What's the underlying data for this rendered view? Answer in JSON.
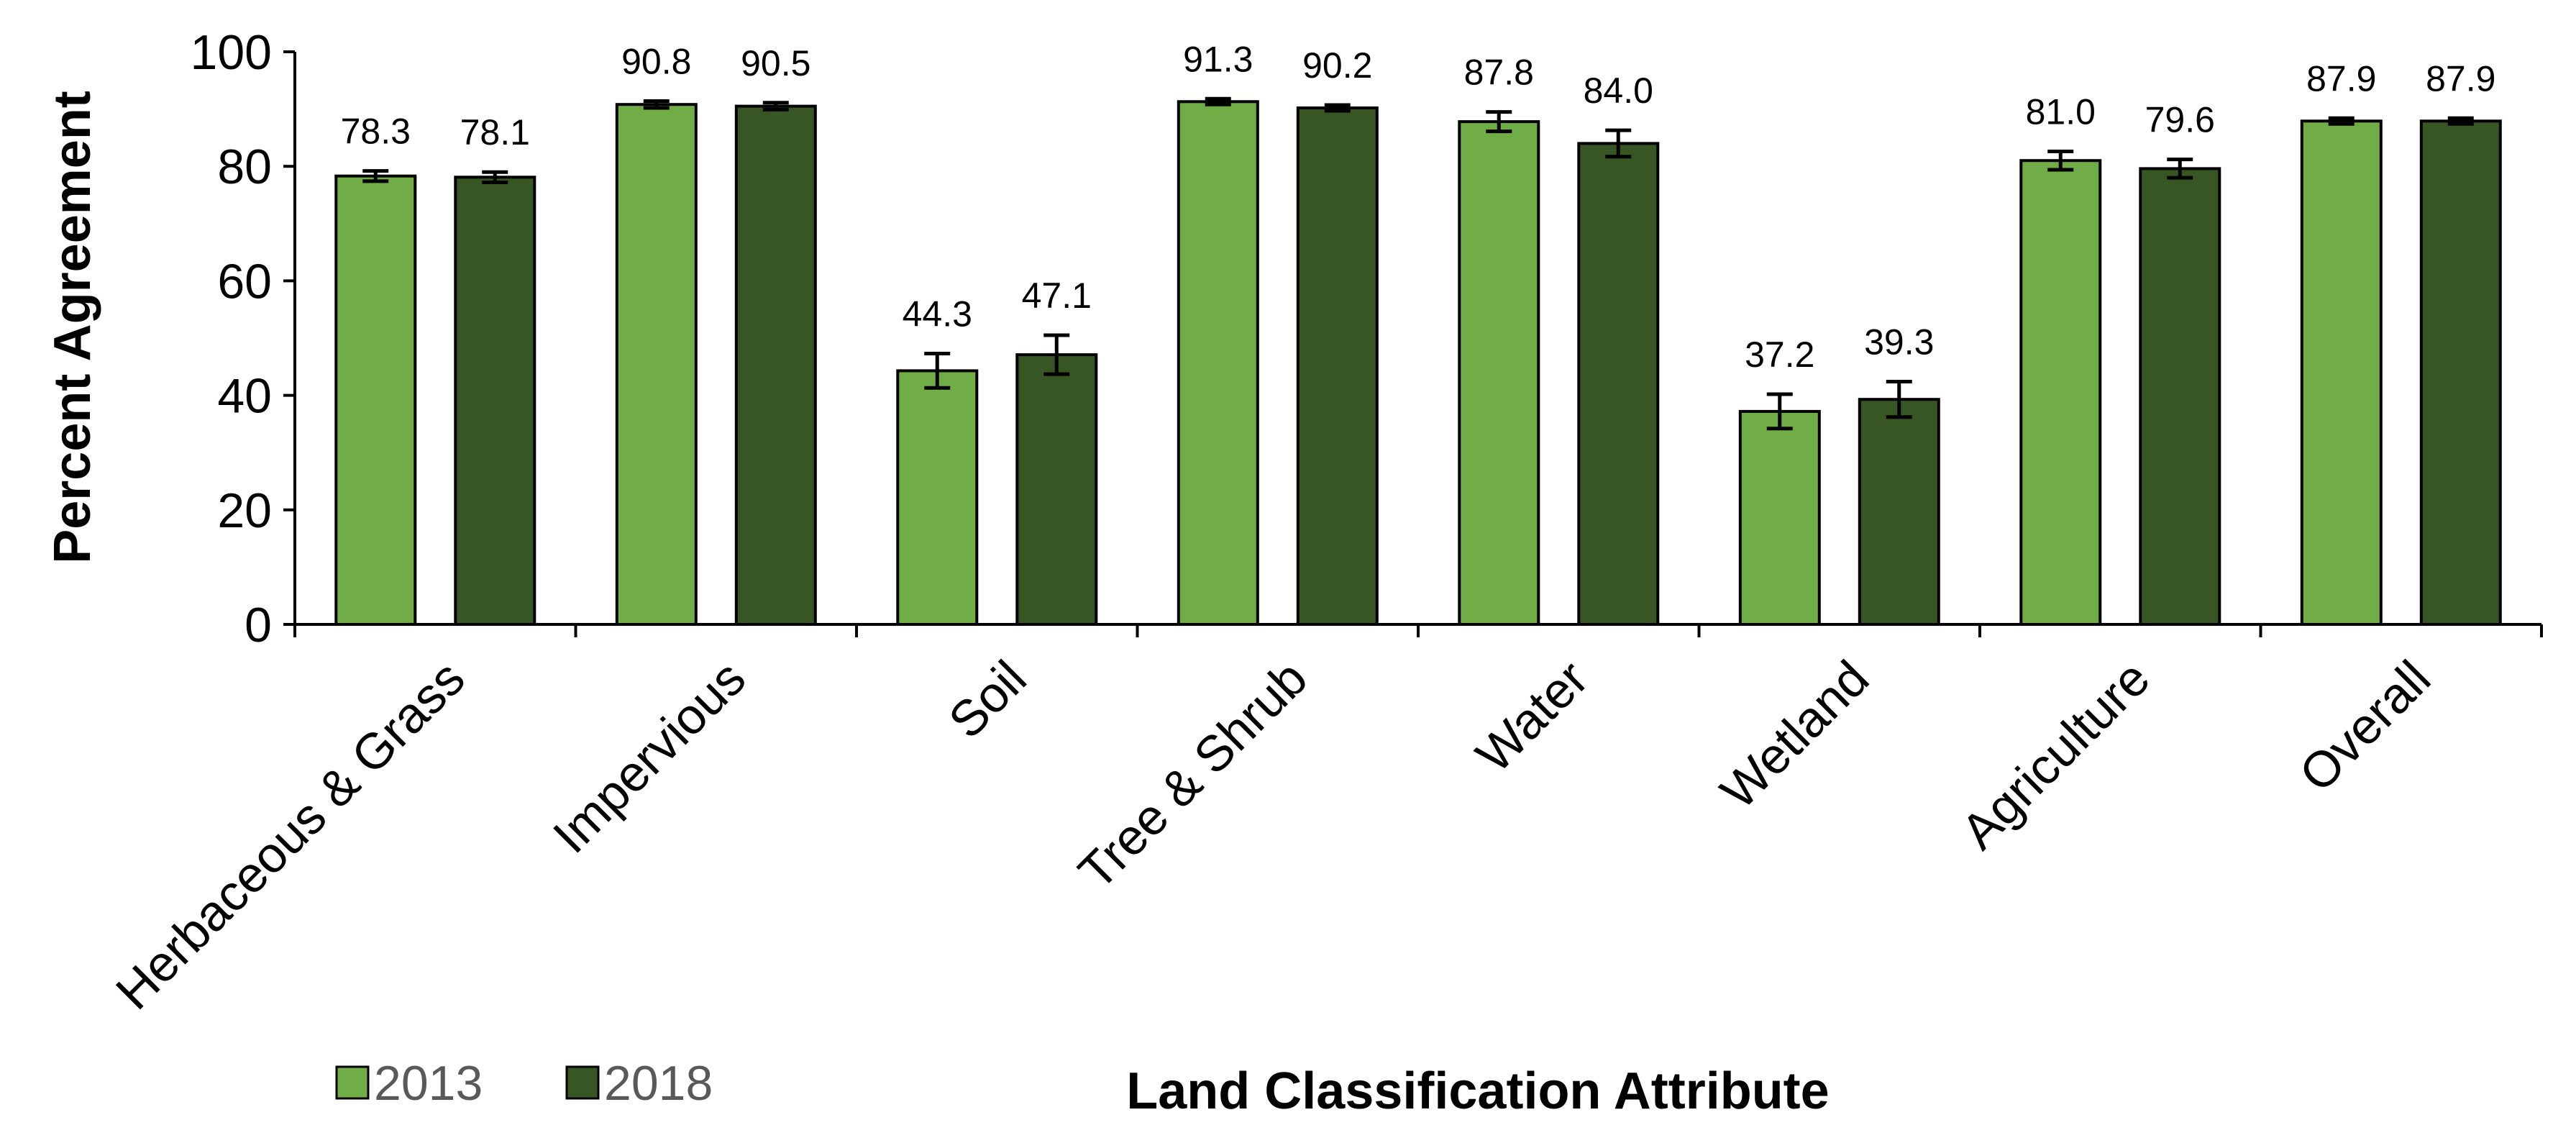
{
  "chart_data": {
    "type": "bar",
    "title": "",
    "xlabel": "Land Classification Attribute",
    "ylabel": "Percent Agreement",
    "ylim": [
      0,
      100
    ],
    "yticks": [
      0,
      20,
      40,
      60,
      80,
      100
    ],
    "ytick_labels": [
      "0",
      "20",
      "40",
      "60",
      "80",
      "100"
    ],
    "grid": false,
    "legend_position": "bottom-left",
    "categories": [
      "Herbaceous & Grass",
      "Impervious",
      "Soil",
      "Tree & Shrub",
      "Water",
      "Wetland",
      "Agriculture",
      "Overall"
    ],
    "series": [
      {
        "name": "2013",
        "color": "#70ad47",
        "values": [
          78.3,
          90.8,
          44.3,
          91.3,
          87.8,
          37.2,
          81.0,
          87.9
        ],
        "value_labels": [
          "78.3",
          "90.8",
          "44.3",
          "91.3",
          "87.8",
          "37.2",
          "81.0",
          "87.9"
        ],
        "error": [
          0.9,
          0.6,
          3.0,
          0.5,
          1.7,
          3.0,
          1.6,
          0.5
        ]
      },
      {
        "name": "2018",
        "color": "#375623",
        "values": [
          78.1,
          90.5,
          47.1,
          90.2,
          84.0,
          39.3,
          79.6,
          87.9
        ],
        "value_labels": [
          "78.1",
          "90.5",
          "47.1",
          "90.2",
          "84.0",
          "39.3",
          "79.6",
          "87.9"
        ],
        "error": [
          0.9,
          0.6,
          3.4,
          0.5,
          2.3,
          3.1,
          1.6,
          0.5
        ]
      }
    ]
  }
}
